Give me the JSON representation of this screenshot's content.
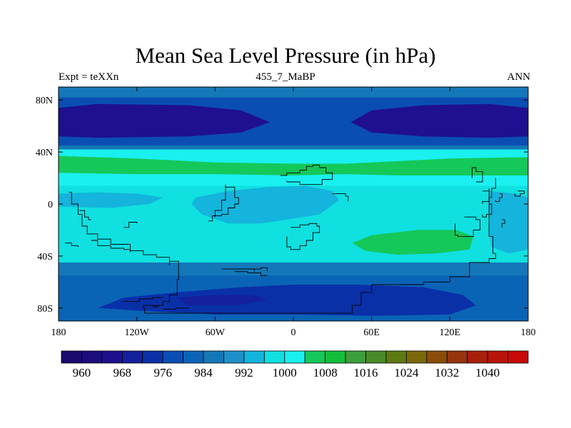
{
  "chart_data": {
    "type": "heatmap",
    "title": "Mean Sea Level Pressure (in hPa)",
    "subtitle_left": "Expt = teXXn",
    "subtitle_center": "455_7_MaBP",
    "subtitle_right": "ANN",
    "xlabel": "",
    "ylabel": "",
    "xlim": [
      -180,
      180
    ],
    "ylim": [
      -90,
      90
    ],
    "x_ticks": [
      {
        "value": -180,
        "label": "180"
      },
      {
        "value": -120,
        "label": "120W"
      },
      {
        "value": -60,
        "label": "60W"
      },
      {
        "value": 0,
        "label": "0"
      },
      {
        "value": 60,
        "label": "60E"
      },
      {
        "value": 120,
        "label": "120E"
      },
      {
        "value": 180,
        "label": "180"
      }
    ],
    "y_ticks": [
      {
        "value": 80,
        "label": "80N"
      },
      {
        "value": 40,
        "label": "40N"
      },
      {
        "value": 0,
        "label": "0"
      },
      {
        "value": -40,
        "label": "40S"
      },
      {
        "value": -80,
        "label": "80S"
      }
    ],
    "colorbar": {
      "levels": [
        956,
        960,
        964,
        968,
        972,
        976,
        980,
        984,
        988,
        992,
        996,
        1000,
        1004,
        1008,
        1012,
        1016,
        1020,
        1024,
        1028,
        1032,
        1036,
        1040,
        1044
      ],
      "colors": [
        "#1a0a6e",
        "#1c0d7e",
        "#1e108e",
        "#14209c",
        "#0a30a8",
        "#0a4eb4",
        "#0a64b6",
        "#1478b8",
        "#1e90c8",
        "#14b4dc",
        "#10e0e0",
        "#1af0f0",
        "#14c85a",
        "#14be3c",
        "#3c9e3c",
        "#4a8a28",
        "#5e7a14",
        "#7a6a0a",
        "#8a4e0a",
        "#963410",
        "#a8200a",
        "#b8140a",
        "#c80a0a"
      ],
      "labels": [
        {
          "value": 960,
          "label": "960"
        },
        {
          "value": 968,
          "label": "968"
        },
        {
          "value": 976,
          "label": "976"
        },
        {
          "value": 984,
          "label": "984"
        },
        {
          "value": 992,
          "label": "992"
        },
        {
          "value": 1000,
          "label": "1000"
        },
        {
          "value": 1008,
          "label": "1008"
        },
        {
          "value": 1016,
          "label": "1016"
        },
        {
          "value": 1024,
          "label": "1024"
        },
        {
          "value": 1032,
          "label": "1032"
        },
        {
          "value": 1040,
          "label": "1040"
        }
      ]
    },
    "field_regions": [
      {
        "name": "south-polar-belt",
        "value": 986,
        "polygon": [
          [
            -180,
            -45
          ],
          [
            180,
            -45
          ],
          [
            180,
            -90
          ],
          [
            -180,
            -90
          ]
        ]
      },
      {
        "name": "southern-ocean-low",
        "value": 980,
        "polygon": [
          [
            -180,
            -55
          ],
          [
            180,
            -55
          ],
          [
            180,
            -90
          ],
          [
            -180,
            -90
          ]
        ]
      },
      {
        "name": "antarctic-south-trough",
        "value": 973,
        "polygon": [
          [
            -150,
            -80
          ],
          [
            -130,
            -72
          ],
          [
            -90,
            -68
          ],
          [
            -40,
            -64
          ],
          [
            0,
            -62
          ],
          [
            50,
            -62
          ],
          [
            100,
            -64
          ],
          [
            130,
            -70
          ],
          [
            140,
            -78
          ],
          [
            120,
            -85
          ],
          [
            60,
            -86
          ],
          [
            0,
            -85
          ],
          [
            -60,
            -85
          ],
          [
            -120,
            -82
          ]
        ]
      },
      {
        "name": "antarctic-core",
        "value": 968,
        "polygon": [
          [
            -90,
            -72
          ],
          [
            -60,
            -70
          ],
          [
            -30,
            -70
          ],
          [
            -20,
            -74
          ],
          [
            -45,
            -78
          ],
          [
            -80,
            -78
          ]
        ]
      },
      {
        "name": "subpolar-belt-north",
        "value": 986,
        "polygon": [
          [
            -180,
            90
          ],
          [
            180,
            90
          ],
          [
            180,
            40
          ],
          [
            -180,
            40
          ]
        ]
      },
      {
        "name": "north-subpolar-lows",
        "value": 976,
        "polygon": [
          [
            -180,
            82
          ],
          [
            180,
            82
          ],
          [
            180,
            45
          ],
          [
            -180,
            45
          ]
        ]
      },
      {
        "name": "north-low-west",
        "value": 964,
        "polygon": [
          [
            -180,
            74
          ],
          [
            -150,
            77
          ],
          [
            -80,
            76
          ],
          [
            -40,
            72
          ],
          [
            -18,
            63
          ],
          [
            -40,
            55
          ],
          [
            -80,
            52
          ],
          [
            -150,
            51
          ],
          [
            -180,
            52
          ]
        ]
      },
      {
        "name": "north-low-east",
        "value": 964,
        "polygon": [
          [
            180,
            74
          ],
          [
            150,
            77
          ],
          [
            100,
            76
          ],
          [
            60,
            72
          ],
          [
            44,
            63
          ],
          [
            60,
            55
          ],
          [
            100,
            52
          ],
          [
            150,
            51
          ],
          [
            180,
            52
          ]
        ]
      },
      {
        "name": "subtropical-north-band",
        "value": 1000,
        "polygon": [
          [
            -180,
            42
          ],
          [
            180,
            42
          ],
          [
            180,
            14
          ],
          [
            -180,
            14
          ]
        ]
      },
      {
        "name": "subtropical-high-north",
        "value": 1006,
        "polygon": [
          [
            -180,
            37
          ],
          [
            -120,
            35
          ],
          [
            -60,
            32
          ],
          [
            0,
            31
          ],
          [
            40,
            31
          ],
          [
            80,
            33
          ],
          [
            120,
            35
          ],
          [
            180,
            36
          ],
          [
            180,
            22
          ],
          [
            120,
            22
          ],
          [
            80,
            22
          ],
          [
            40,
            23
          ],
          [
            0,
            22
          ],
          [
            -60,
            23
          ],
          [
            -120,
            23
          ],
          [
            -180,
            24
          ]
        ]
      },
      {
        "name": "equatorial-band",
        "value": 997,
        "polygon": [
          [
            -180,
            14
          ],
          [
            180,
            14
          ],
          [
            180,
            -45
          ],
          [
            -180,
            -45
          ]
        ]
      },
      {
        "name": "equatorial-trough-west",
        "value": 993,
        "polygon": [
          [
            -180,
            8
          ],
          [
            -150,
            9
          ],
          [
            -120,
            8
          ],
          [
            -100,
            5
          ],
          [
            -110,
            0
          ],
          [
            -140,
            -3
          ],
          [
            -180,
            -2
          ]
        ]
      },
      {
        "name": "equatorial-trough-central",
        "value": 993,
        "polygon": [
          [
            -75,
            5
          ],
          [
            -50,
            10
          ],
          [
            -20,
            13
          ],
          [
            10,
            14
          ],
          [
            30,
            10
          ],
          [
            35,
            3
          ],
          [
            20,
            -8
          ],
          [
            -5,
            -12
          ],
          [
            -25,
            -15
          ],
          [
            -50,
            -15
          ],
          [
            -70,
            -8
          ],
          [
            -78,
            0
          ]
        ]
      },
      {
        "name": "equatorial-trough-east",
        "value": 993,
        "polygon": [
          [
            150,
            10
          ],
          [
            170,
            8
          ],
          [
            180,
            5
          ],
          [
            180,
            -35
          ],
          [
            165,
            -38
          ],
          [
            152,
            -33
          ],
          [
            150,
            -20
          ],
          [
            150,
            -5
          ]
        ]
      },
      {
        "name": "southern-high",
        "value": 1006,
        "polygon": [
          [
            45,
            -30
          ],
          [
            60,
            -24
          ],
          [
            95,
            -20
          ],
          [
            125,
            -20
          ],
          [
            138,
            -25
          ],
          [
            135,
            -35
          ],
          [
            110,
            -38
          ],
          [
            80,
            -39
          ],
          [
            55,
            -36
          ]
        ]
      }
    ],
    "coastlines": [
      [
        [
          -172,
          9
        ],
        [
          -170,
          0
        ],
        [
          -165,
          -8
        ],
        [
          -162,
          -17
        ],
        [
          -158,
          -23
        ],
        [
          -150,
          -27
        ],
        [
          -140,
          -31
        ],
        [
          -125,
          -36
        ],
        [
          -115,
          -39
        ],
        [
          -105,
          -41
        ],
        [
          -95,
          -44
        ],
        [
          -88,
          -47
        ],
        [
          -88,
          -58
        ],
        [
          -89,
          -70
        ],
        [
          -95,
          -75
        ],
        [
          -100,
          -78
        ],
        [
          -115,
          -80
        ],
        [
          -114,
          -84
        ],
        [
          -60,
          -84
        ],
        [
          0,
          -84
        ],
        [
          45,
          -84
        ],
        [
          45,
          -78
        ],
        [
          52,
          -68
        ],
        [
          60,
          -62
        ],
        [
          100,
          -60
        ],
        [
          120,
          -56
        ],
        [
          135,
          -45
        ],
        [
          150,
          -42
        ],
        [
          155,
          -38
        ],
        [
          153,
          -25
        ],
        [
          150,
          -10
        ],
        [
          150,
          5
        ],
        [
          152,
          12
        ],
        [
          155,
          20
        ]
      ],
      [
        [
          -155,
          -28
        ],
        [
          -150,
          -32
        ],
        [
          -140,
          -34
        ],
        [
          -130,
          -35
        ],
        [
          -125,
          -37
        ]
      ],
      [
        [
          -164,
          -5
        ],
        [
          -160,
          -10
        ],
        [
          -157,
          -12
        ],
        [
          -155,
          -12
        ]
      ],
      [
        [
          -130,
          -18
        ],
        [
          -126,
          -14
        ],
        [
          -123,
          -14
        ],
        [
          -120,
          -15
        ]
      ],
      [
        [
          -175,
          -30
        ],
        [
          -170,
          -32
        ],
        [
          -165,
          -33
        ]
      ],
      [
        [
          -130,
          -75
        ],
        [
          -118,
          -73
        ],
        [
          -108,
          -72
        ],
        [
          -100,
          -72
        ]
      ],
      [
        [
          -100,
          -81
        ],
        [
          -90,
          -80
        ],
        [
          -80,
          -80
        ]
      ],
      [
        [
          -55,
          -50
        ],
        [
          -45,
          -50
        ],
        [
          -35,
          -50
        ],
        [
          -30,
          -52
        ]
      ],
      [
        [
          -35,
          -50
        ],
        [
          -25,
          -49
        ],
        [
          -20,
          -50
        ],
        [
          -20,
          -52
        ]
      ],
      [
        [
          -103,
          -79
        ],
        [
          -108,
          -79
        ]
      ],
      [
        [
          -65,
          -13
        ],
        [
          -62,
          -9
        ],
        [
          -55,
          -8
        ],
        [
          -50,
          -3
        ],
        [
          -45,
          0
        ],
        [
          -42,
          5
        ],
        [
          -45,
          13
        ],
        [
          -52,
          15
        ],
        [
          -52,
          3
        ],
        [
          -55,
          -5
        ],
        [
          -60,
          -10
        ]
      ],
      [
        [
          -10,
          22
        ],
        [
          -5,
          24
        ],
        [
          5,
          26
        ],
        [
          10,
          29
        ],
        [
          15,
          30
        ],
        [
          20,
          28
        ],
        [
          25,
          24
        ],
        [
          30,
          22
        ],
        [
          30,
          19
        ],
        [
          22,
          15
        ],
        [
          15,
          15
        ],
        [
          5,
          17
        ],
        [
          -5,
          18
        ]
      ],
      [
        [
          -2,
          -18
        ],
        [
          5,
          -16
        ],
        [
          12,
          -15
        ],
        [
          18,
          -17
        ],
        [
          20,
          -22
        ],
        [
          15,
          -28
        ],
        [
          10,
          -32
        ],
        [
          5,
          -35
        ],
        [
          -2,
          -33
        ],
        [
          -5,
          -25
        ]
      ],
      [
        [
          30,
          8
        ],
        [
          35,
          8
        ],
        [
          40,
          6
        ],
        [
          42,
          2
        ]
      ],
      [
        [
          131,
          -10
        ],
        [
          140,
          -12
        ],
        [
          143,
          -20
        ],
        [
          138,
          -25
        ],
        [
          126,
          -24
        ],
        [
          124,
          -15
        ]
      ],
      [
        [
          140,
          17
        ],
        [
          145,
          20
        ],
        [
          145,
          25
        ],
        [
          140,
          28
        ],
        [
          137,
          26
        ],
        [
          137,
          20
        ]
      ],
      [
        [
          145,
          10
        ],
        [
          150,
          12
        ],
        [
          150,
          2
        ],
        [
          145,
          0
        ]
      ],
      [
        [
          150,
          0
        ],
        [
          152,
          -4
        ],
        [
          152,
          -8
        ],
        [
          148,
          -10
        ],
        [
          145,
          -8
        ]
      ],
      [
        [
          158,
          8
        ],
        [
          160,
          5
        ],
        [
          158,
          2
        ],
        [
          155,
          3
        ]
      ],
      [
        [
          172,
          10
        ],
        [
          175,
          10
        ],
        [
          177,
          8
        ],
        [
          174,
          6
        ],
        [
          170,
          6
        ],
        [
          170,
          8
        ]
      ],
      [
        [
          160,
          -12
        ],
        [
          162,
          -15
        ],
        [
          160,
          -18
        ]
      ],
      [
        [
          -95,
          -47
        ],
        [
          -95,
          -44
        ]
      ],
      [
        [
          -45,
          -52
        ],
        [
          -35,
          -53
        ],
        [
          -25,
          -55
        ],
        [
          -20,
          -55
        ],
        [
          -25,
          -52
        ]
      ]
    ]
  }
}
